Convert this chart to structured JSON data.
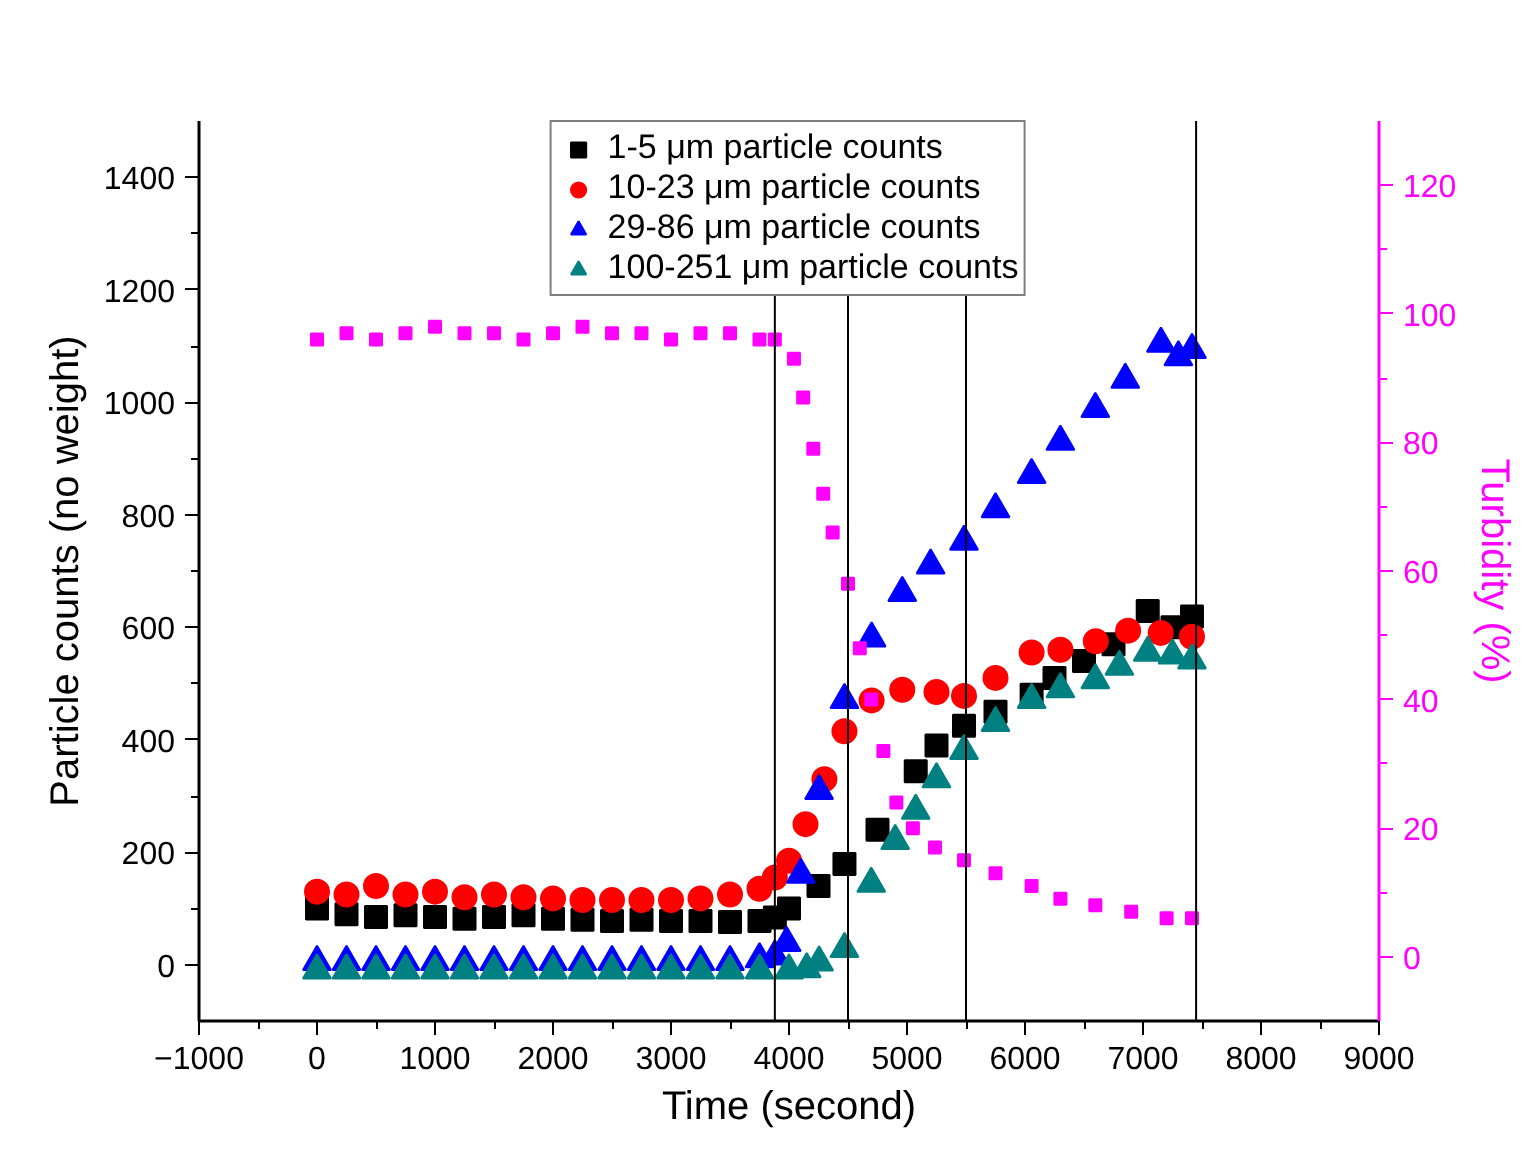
{
  "chart_data": {
    "type": "scatter",
    "xlabel": "Time (second)",
    "ylabel": "Particle counts (no weight)",
    "y2label": "Turbidity (%)",
    "xlim": [
      -1000,
      9000
    ],
    "ylim": [
      -100,
      1500
    ],
    "y2lim": [
      -10,
      130
    ],
    "xticks": [
      -1000,
      {
        "value": -500,
        "label": null
      },
      0,
      {
        "value": 500,
        "label": null
      },
      1000,
      {
        "value": 1500,
        "label": null
      },
      2000,
      {
        "value": 2500,
        "label": null
      },
      3000,
      {
        "value": 3500,
        "label": null
      },
      4000,
      {
        "value": 4500,
        "label": null
      },
      5000,
      {
        "value": 5500,
        "label": null
      },
      6000,
      {
        "value": 6500,
        "label": null
      },
      7000,
      {
        "value": 7500,
        "label": null
      },
      8000,
      {
        "value": 8500,
        "label": null
      },
      9000
    ],
    "yticks": [
      0,
      {
        "value": 100,
        "label": null
      },
      200,
      {
        "value": 300,
        "label": null
      },
      400,
      {
        "value": 500,
        "label": null
      },
      600,
      {
        "value": 700,
        "label": null
      },
      800,
      {
        "value": 900,
        "label": null
      },
      1000,
      {
        "value": 1100,
        "label": null
      },
      1200,
      {
        "value": 1300,
        "label": null
      },
      1400
    ],
    "y2ticks": [
      0,
      {
        "value": 10,
        "label": null
      },
      20,
      {
        "value": 30,
        "label": null
      },
      40,
      {
        "value": 50,
        "label": null
      },
      60,
      {
        "value": 70,
        "label": null
      },
      80,
      {
        "value": 90,
        "label": null
      },
      100,
      {
        "value": 110,
        "label": null
      },
      120
    ],
    "grid": false,
    "legend": "top",
    "ref_lines": [
      {
        "axis": "x",
        "value": 3880,
        "color": "#000000"
      },
      {
        "axis": "x",
        "value": 4500,
        "color": "#000000"
      },
      {
        "axis": "x",
        "value": 5500,
        "color": "#000000"
      },
      {
        "axis": "x",
        "value": 7450,
        "color": "#000000"
      }
    ],
    "series": [
      {
        "name": "1-5 μm particle counts",
        "color": "#000000",
        "marker": "square",
        "x": [
          0,
          250,
          500,
          750,
          1000,
          1250,
          1500,
          1750,
          2000,
          2250,
          2500,
          2750,
          3000,
          3250,
          3500,
          3750,
          3880,
          4000,
          4250,
          4470,
          4750,
          5074,
          5250,
          5483,
          5750,
          6056,
          6250,
          6500,
          6750,
          7040,
          7250,
          7415
        ],
        "values": [
          100,
          90,
          85,
          88,
          85,
          82,
          85,
          88,
          82,
          80,
          78,
          80,
          78,
          78,
          76,
          78,
          84,
          100,
          140,
          179,
          240,
          344,
          390,
          425,
          450,
          480,
          510,
          540,
          570,
          629,
          600,
          619
        ]
      },
      {
        "name": "10-23 μm particle counts",
        "color": "#ff0000",
        "marker": "circle",
        "x": [
          0,
          250,
          500,
          750,
          1000,
          1250,
          1500,
          1750,
          2000,
          2250,
          2500,
          2750,
          3000,
          3250,
          3500,
          3750,
          3880,
          4000,
          4140,
          4300,
          4470,
          4700,
          4960,
          5250,
          5483,
          5750,
          6056,
          6300,
          6600,
          6874,
          7150,
          7415
        ],
        "values": [
          130,
          125,
          140,
          125,
          130,
          120,
          125,
          120,
          118,
          115,
          115,
          115,
          115,
          118,
          125,
          135,
          155,
          185,
          250,
          330,
          415,
          470,
          489,
          485,
          478,
          510,
          555,
          560,
          575,
          594,
          590,
          583
        ]
      },
      {
        "name": "29-86 μm particle counts",
        "color": "#0000ff",
        "marker": "triangle",
        "x": [
          0,
          250,
          500,
          750,
          1000,
          1250,
          1500,
          1750,
          2000,
          2250,
          2500,
          2750,
          3000,
          3250,
          3500,
          3750,
          3880,
          3980,
          4100,
          4255,
          4470,
          4700,
          4960,
          5200,
          5483,
          5750,
          6056,
          6300,
          6596,
          6850,
          7152,
          7300,
          7415
        ],
        "values": [
          5,
          5,
          5,
          5,
          5,
          5,
          5,
          5,
          5,
          5,
          5,
          5,
          5,
          5,
          5,
          10,
          15,
          39,
          160,
          309,
          471,
          580,
          661,
          710,
          752,
          810,
          871,
          930,
          988,
          1040,
          1104,
          1080,
          1093
        ]
      },
      {
        "name": "100-251 μm particle counts",
        "color": "#008080",
        "marker": "triangle",
        "x": [
          0,
          250,
          500,
          750,
          1000,
          1250,
          1500,
          1750,
          2000,
          2250,
          2500,
          2750,
          3000,
          3250,
          3500,
          3750,
          4000,
          4150,
          4255,
          4470,
          4697,
          4900,
          5074,
          5250,
          5483,
          5750,
          6056,
          6300,
          6596,
          6800,
          7040,
          7250,
          7415
        ],
        "values": [
          -10,
          -10,
          -10,
          -10,
          -10,
          -10,
          -10,
          -10,
          -10,
          -10,
          -10,
          -10,
          -10,
          -10,
          -10,
          -10,
          -10,
          -8,
          4,
          28,
          144,
          220,
          274,
          330,
          380,
          430,
          471,
          490,
          506,
          530,
          555,
          550,
          541
        ]
      },
      {
        "color": "#ff00ff",
        "marker": "square",
        "axis": "y2",
        "x": [
          0,
          250,
          500,
          750,
          1000,
          1250,
          1500,
          1750,
          2000,
          2250,
          2500,
          2750,
          3000,
          3250,
          3500,
          3750,
          3880,
          4042,
          4120,
          4206,
          4290,
          4370,
          4500,
          4600,
          4697,
          4800,
          4910,
          5050,
          5237,
          5483,
          5750,
          6056,
          6300,
          6596,
          6900,
          7200,
          7415
        ],
        "values": [
          96,
          97,
          96,
          97,
          98,
          97,
          97,
          96,
          97,
          98,
          97,
          97,
          96,
          97,
          97,
          96,
          96,
          93,
          87,
          79,
          72,
          66,
          58,
          48,
          40,
          32,
          24,
          20,
          17,
          15,
          13,
          11,
          9,
          8,
          7,
          6,
          6
        ]
      }
    ]
  }
}
